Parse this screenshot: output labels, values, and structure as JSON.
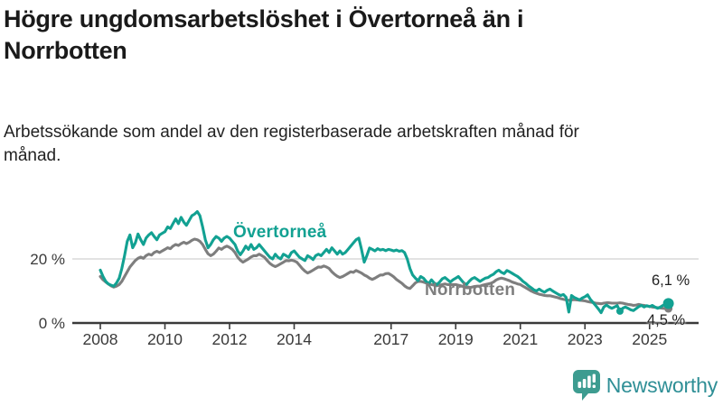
{
  "header": {
    "title": "Högre ungdomsarbetslöshet i Övertorneå än i Norrbotten",
    "subtitle": "Arbetssökande som andel av den registerbaserade arbetskraften månad för månad."
  },
  "logo": {
    "text": "Newsworthy",
    "icon": "bar-chart-pin-icon",
    "icon_color": "#3d9c90",
    "text_color": "#2f8f96"
  },
  "chart_data": {
    "type": "line",
    "title": "Högre ungdomsarbetslöshet i Övertorneå än i Norrbotten",
    "subtitle": "Arbetssökande som andel av den registerbaserade arbetskraften månad för månad.",
    "unit": "%",
    "x_start_year": 2008,
    "x_step_months": 1,
    "x_end": "2025-08",
    "xlim": [
      2008,
      2025.7
    ],
    "ylim": [
      0,
      36
    ],
    "grid": "y-20-only",
    "x_ticks": [
      {
        "year": 2008,
        "label": "2008"
      },
      {
        "year": 2010,
        "label": "2010"
      },
      {
        "year": 2012,
        "label": "2012"
      },
      {
        "year": 2014,
        "label": "2014"
      },
      {
        "year": 2017,
        "label": "2017"
      },
      {
        "year": 2019,
        "label": "2019"
      },
      {
        "year": 2021,
        "label": "2021"
      },
      {
        "year": 2023,
        "label": "2023"
      },
      {
        "year": 2025,
        "label": "2025"
      }
    ],
    "y_ticks": [
      {
        "value": 0,
        "label": "0 %"
      },
      {
        "value": 20,
        "label": "20 %"
      }
    ],
    "series": [
      {
        "name": "Övertorneå",
        "color": "#12a192",
        "end_label": "6,1 %",
        "end_value": 6.1,
        "values": [
          16.5,
          14.5,
          13,
          12.2,
          11.8,
          11.5,
          12.5,
          14,
          17,
          21,
          25.5,
          27.5,
          23.5,
          25,
          27.8,
          26,
          24.5,
          26.5,
          27.5,
          28.2,
          27,
          26,
          27.5,
          28,
          28.5,
          30,
          29.5,
          31,
          32.5,
          31,
          33,
          31.5,
          30.5,
          32,
          33.5,
          34,
          34.8,
          33.5,
          30,
          26,
          23.5,
          24.5,
          26,
          27,
          26.5,
          25.5,
          26.5,
          27,
          26.5,
          25.5,
          24.5,
          22.5,
          21.3,
          22.5,
          24,
          23,
          24.5,
          23,
          23.5,
          24.5,
          23.5,
          22.5,
          21.5,
          20.5,
          20,
          21.5,
          20.5,
          20,
          21.5,
          21,
          20.5,
          22,
          22.5,
          21.5,
          20.5,
          20,
          19.5,
          21,
          20.5,
          19.8,
          21,
          21.5,
          21,
          22,
          23,
          22,
          23.5,
          22.5,
          21.5,
          22.5,
          21.5,
          22,
          23,
          24,
          25,
          26,
          26.5,
          23,
          19,
          21,
          23.4,
          23,
          22.5,
          23.2,
          22.8,
          23,
          22.6,
          23,
          22.8,
          22.5,
          22.8,
          22.4,
          22.6,
          22,
          20,
          17,
          15,
          14,
          13.2,
          14.5,
          14,
          13,
          12.3,
          13.5,
          12.5,
          12,
          12.8,
          13.8,
          14.2,
          13.5,
          12.8,
          13.5,
          14,
          14.5,
          13.5,
          12.5,
          12,
          13,
          13.8,
          14.2,
          13.6,
          13,
          13.5,
          14,
          14.2,
          14.8,
          15.2,
          16,
          16.5,
          15.8,
          15.4,
          16.4,
          16,
          15.5,
          15,
          14.5,
          13.8,
          13,
          12.4,
          11.6,
          11,
          10.4,
          10,
          10.6,
          10,
          9.6,
          10.2,
          10.6,
          10,
          9.5,
          9,
          8.6,
          8.9,
          8,
          3.4,
          8.6,
          8,
          7.6,
          7.2,
          7.8,
          8.2,
          8.8,
          7.4,
          6.4,
          5.4,
          4.4,
          3.2,
          5,
          5.6,
          5,
          4.6,
          5,
          5.4,
          3.7,
          4.6,
          5,
          4.6,
          4.1,
          3.9,
          4.5,
          5.1,
          5.5,
          5,
          5.4,
          5.1,
          5.5,
          5,
          4.6,
          5,
          5.5,
          5.9,
          6.1
        ]
      },
      {
        "name": "Norrbotten",
        "color": "#7e7e7e",
        "end_label": "4,5 %",
        "end_value": 4.5,
        "values": [
          14.5,
          13.5,
          12.8,
          12.2,
          11.6,
          11.2,
          11.5,
          12,
          13,
          14.5,
          16,
          17.5,
          18.5,
          19.5,
          20.2,
          20.6,
          20.2,
          21,
          21.5,
          21.2,
          22,
          22.4,
          22,
          22.5,
          23,
          23.5,
          23.2,
          24,
          24.5,
          24.2,
          24.8,
          25.2,
          24.8,
          25.2,
          25.8,
          26.2,
          26,
          25.5,
          24.5,
          23,
          21.6,
          21,
          21.5,
          22.4,
          23.4,
          23,
          23.6,
          24,
          23.6,
          23,
          22,
          20.6,
          19.6,
          19,
          19.5,
          20,
          20.6,
          21,
          21,
          21.5,
          21,
          20.5,
          19.5,
          18.6,
          18,
          17.6,
          18,
          18.5,
          19,
          19.5,
          19.4,
          19.6,
          19.4,
          19,
          18,
          17,
          16.2,
          15.6,
          16,
          16.5,
          17,
          17.5,
          17.4,
          17.8,
          17.5,
          17,
          16,
          15.2,
          14.6,
          14.2,
          14.5,
          15,
          15.5,
          16,
          15.8,
          16.4,
          16,
          15.6,
          15,
          14.6,
          14,
          13.6,
          14,
          14.5,
          15,
          15,
          15.4,
          15.5,
          15,
          14.4,
          13.6,
          13,
          12.4,
          11.6,
          11,
          10.8,
          11.6,
          12.5,
          13,
          13,
          12.8,
          12.5,
          12.2,
          12,
          11.8,
          11.6,
          11.8,
          12,
          12.2,
          12,
          12,
          12,
          12,
          11.8,
          11.6,
          11.3,
          11,
          11,
          11.2,
          11.4,
          11.5,
          11.5,
          11.8,
          12,
          12.2,
          12.4,
          12.8,
          13.4,
          13.8,
          14,
          13.8,
          13.5,
          13.2,
          12.8,
          12.5,
          12.2,
          12,
          11.5,
          11,
          10.5,
          10,
          9.6,
          9.3,
          9,
          8.8,
          8.6,
          8.5,
          8.5,
          8.3,
          8.1,
          7.9,
          7.6,
          7.4,
          7.2,
          7.1,
          7.2,
          7.3,
          7.2,
          7.1,
          7,
          6.9,
          6.7,
          6.5,
          6.4,
          6.2,
          6.1,
          6,
          6.2,
          6.3,
          6.3,
          6.2,
          6.2,
          6.2,
          6.3,
          6.2,
          6,
          5.8,
          5.7,
          5.5,
          5.6,
          5.8,
          5.6,
          5.5,
          5.3,
          5.2,
          5,
          4.9,
          4.8,
          4.7,
          4.6,
          4.5,
          4.5
        ]
      }
    ],
    "markers": [
      {
        "series": 0,
        "month_index": 193
      }
    ],
    "colors": {
      "axis": "#3a3a3a",
      "gridline": "#d8d8d8",
      "annotation": "#1f1f1f"
    }
  }
}
